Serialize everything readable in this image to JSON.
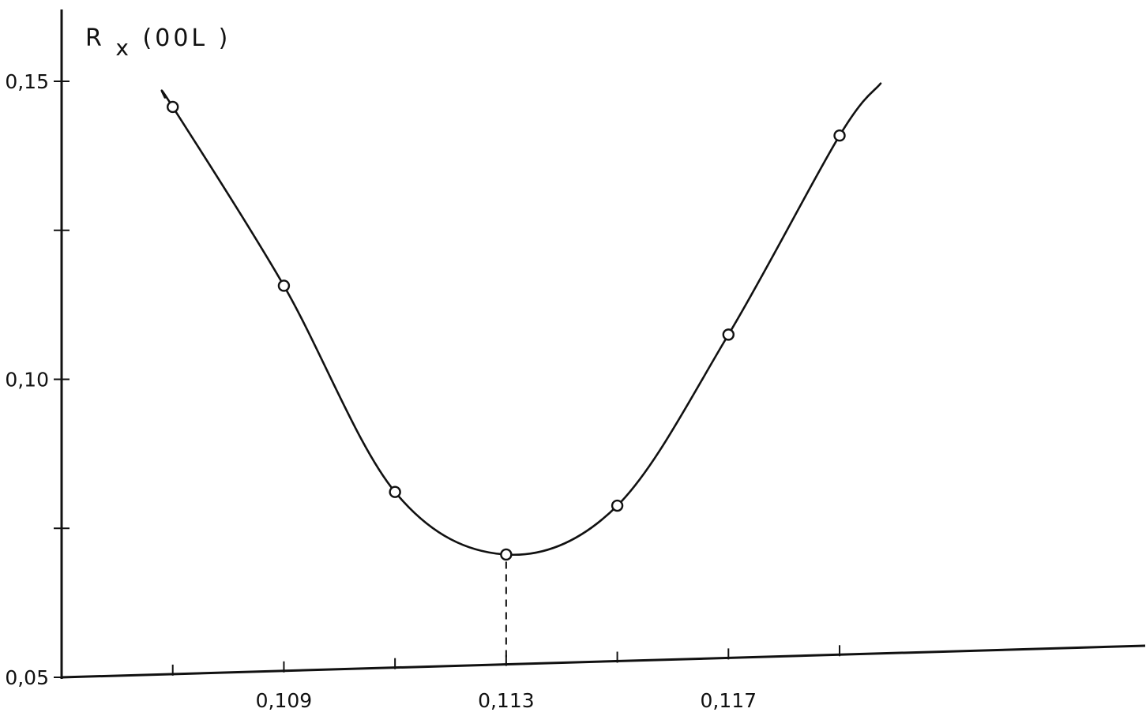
{
  "chart_data": {
    "type": "line",
    "title": "",
    "xlabel": "",
    "ylabel": "R",
    "ylabel_subscript": "x",
    "ylabel_suffix": "(00L )",
    "xlim": [
      0.105,
      0.1245
    ],
    "ylim": [
      0.05,
      0.16
    ],
    "x_ticks": [
      0.107,
      0.109,
      0.111,
      0.113,
      0.115,
      0.117,
      0.119
    ],
    "x_tick_labels": [
      "",
      "0,109",
      "",
      "0,113",
      "",
      "0,117",
      ""
    ],
    "y_ticks": [
      0.05,
      0.075,
      0.1,
      0.125,
      0.15
    ],
    "y_tick_labels": [
      "0,05",
      "",
      "0,10",
      "",
      "0,15"
    ],
    "grid": false,
    "series": [
      {
        "marker": "open-circle",
        "points": [
          {
            "x": 0.107,
            "y": 0.1457
          },
          {
            "x": 0.109,
            "y": 0.1157
          },
          {
            "x": 0.111,
            "y": 0.0811
          },
          {
            "x": 0.113,
            "y": 0.0706
          },
          {
            "x": 0.115,
            "y": 0.0788
          },
          {
            "x": 0.117,
            "y": 0.1075
          },
          {
            "x": 0.119,
            "y": 0.1409
          }
        ]
      }
    ],
    "minimum_marker_x": 0.113
  }
}
